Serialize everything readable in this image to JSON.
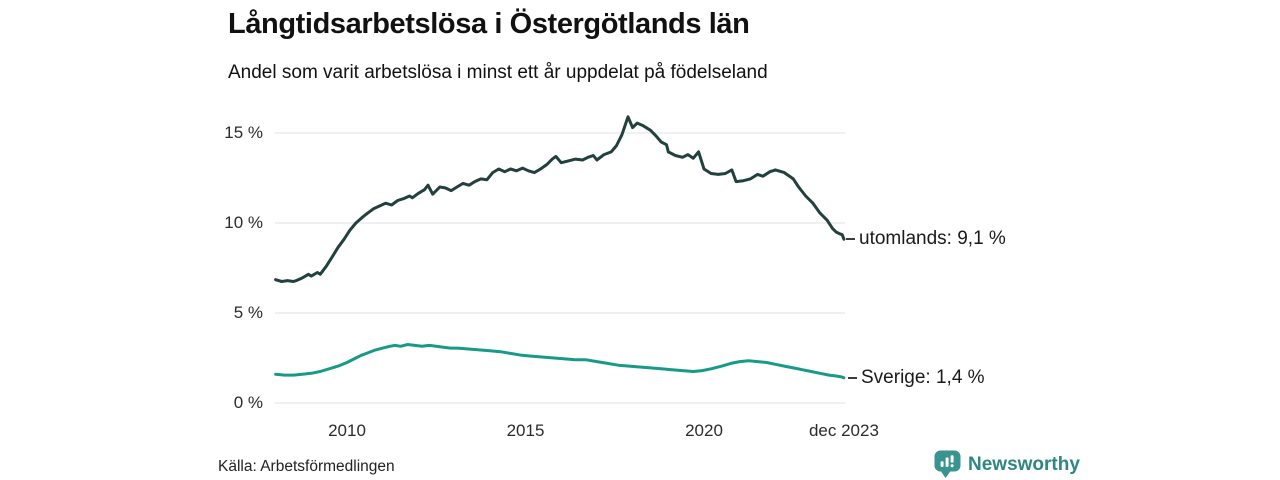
{
  "header": {
    "title": "Långtidsarbetslösa i Östergötlands län",
    "subtitle": "Andel som varit arbetslösa i minst ett år uppdelat på födelseland"
  },
  "footer": {
    "source": "Källa: Arbetsförmedlingen",
    "brand": "Newsworthy",
    "brand_color": "#2f8683",
    "logo_icon": "speech-bubble-bar-chart-icon"
  },
  "chart_data": {
    "type": "line",
    "title": "Långtidsarbetslösa i Östergötlands län",
    "subtitle": "Andel som varit arbetslösa i minst ett år uppdelat på födelseland",
    "unit": "%",
    "grid": "horizontal",
    "grid_color": "#e8e8ea",
    "x_range": [
      2008,
      2023.92
    ],
    "y_range": [
      0,
      16.5
    ],
    "x_ticks": [
      {
        "x": 2010,
        "label": "2010"
      },
      {
        "x": 2015,
        "label": "2015"
      },
      {
        "x": 2020,
        "label": "2020"
      },
      {
        "x": 2023.92,
        "label": "dec 2023"
      }
    ],
    "y_ticks": [
      {
        "v": 0,
        "label": "0 %"
      },
      {
        "v": 5,
        "label": "5 %"
      },
      {
        "v": 10,
        "label": "10 %"
      },
      {
        "v": 15,
        "label": "15 %"
      }
    ],
    "series": [
      {
        "name": "utomlands",
        "end_label": "utomlands: 9,1 %",
        "end_value": 9.1,
        "color": "#22403c",
        "points": [
          [
            2008.0,
            6.85
          ],
          [
            2008.17,
            6.75
          ],
          [
            2008.33,
            6.8
          ],
          [
            2008.5,
            6.75
          ],
          [
            2008.58,
            6.8
          ],
          [
            2008.75,
            6.95
          ],
          [
            2008.92,
            7.15
          ],
          [
            2009.0,
            7.05
          ],
          [
            2009.17,
            7.25
          ],
          [
            2009.25,
            7.15
          ],
          [
            2009.42,
            7.6
          ],
          [
            2009.58,
            8.1
          ],
          [
            2009.75,
            8.65
          ],
          [
            2009.92,
            9.1
          ],
          [
            2010.08,
            9.6
          ],
          [
            2010.25,
            10.0
          ],
          [
            2010.42,
            10.3
          ],
          [
            2010.58,
            10.55
          ],
          [
            2010.75,
            10.8
          ],
          [
            2010.92,
            10.95
          ],
          [
            2011.08,
            11.1
          ],
          [
            2011.25,
            11.0
          ],
          [
            2011.42,
            11.25
          ],
          [
            2011.58,
            11.35
          ],
          [
            2011.75,
            11.5
          ],
          [
            2011.83,
            11.4
          ],
          [
            2012.0,
            11.65
          ],
          [
            2012.17,
            11.85
          ],
          [
            2012.27,
            12.1
          ],
          [
            2012.4,
            11.6
          ],
          [
            2012.6,
            12.0
          ],
          [
            2012.75,
            11.95
          ],
          [
            2012.92,
            11.8
          ],
          [
            2013.08,
            12.0
          ],
          [
            2013.25,
            12.2
          ],
          [
            2013.42,
            12.1
          ],
          [
            2013.58,
            12.3
          ],
          [
            2013.75,
            12.45
          ],
          [
            2013.92,
            12.4
          ],
          [
            2014.08,
            12.8
          ],
          [
            2014.25,
            13.0
          ],
          [
            2014.42,
            12.85
          ],
          [
            2014.58,
            13.0
          ],
          [
            2014.75,
            12.9
          ],
          [
            2014.92,
            13.05
          ],
          [
            2015.08,
            12.9
          ],
          [
            2015.25,
            12.8
          ],
          [
            2015.42,
            13.0
          ],
          [
            2015.6,
            13.25
          ],
          [
            2015.75,
            13.55
          ],
          [
            2015.85,
            13.7
          ],
          [
            2016.0,
            13.35
          ],
          [
            2016.2,
            13.45
          ],
          [
            2016.4,
            13.55
          ],
          [
            2016.6,
            13.5
          ],
          [
            2016.75,
            13.65
          ],
          [
            2016.9,
            13.75
          ],
          [
            2017.0,
            13.5
          ],
          [
            2017.2,
            13.8
          ],
          [
            2017.4,
            13.95
          ],
          [
            2017.55,
            14.3
          ],
          [
            2017.7,
            14.9
          ],
          [
            2017.87,
            15.9
          ],
          [
            2018.0,
            15.3
          ],
          [
            2018.13,
            15.55
          ],
          [
            2018.3,
            15.4
          ],
          [
            2018.5,
            15.15
          ],
          [
            2018.65,
            14.85
          ],
          [
            2018.8,
            14.5
          ],
          [
            2018.95,
            14.35
          ],
          [
            2019.0,
            13.95
          ],
          [
            2019.2,
            13.75
          ],
          [
            2019.4,
            13.65
          ],
          [
            2019.55,
            13.8
          ],
          [
            2019.7,
            13.6
          ],
          [
            2019.85,
            13.95
          ],
          [
            2020.0,
            13.0
          ],
          [
            2020.2,
            12.75
          ],
          [
            2020.4,
            12.7
          ],
          [
            2020.6,
            12.75
          ],
          [
            2020.78,
            12.95
          ],
          [
            2020.9,
            12.3
          ],
          [
            2021.1,
            12.35
          ],
          [
            2021.3,
            12.45
          ],
          [
            2021.5,
            12.7
          ],
          [
            2021.65,
            12.6
          ],
          [
            2021.85,
            12.85
          ],
          [
            2022.0,
            12.95
          ],
          [
            2022.25,
            12.8
          ],
          [
            2022.5,
            12.45
          ],
          [
            2022.65,
            12.0
          ],
          [
            2022.85,
            11.5
          ],
          [
            2023.05,
            11.1
          ],
          [
            2023.25,
            10.55
          ],
          [
            2023.45,
            10.15
          ],
          [
            2023.6,
            9.7
          ],
          [
            2023.7,
            9.5
          ],
          [
            2023.8,
            9.4
          ],
          [
            2023.87,
            9.35
          ],
          [
            2023.92,
            9.1
          ]
        ]
      },
      {
        "name": "Sverige",
        "end_label": "Sverige: 1,4 %",
        "end_value": 1.4,
        "color": "#189a89",
        "points": [
          [
            2008.0,
            1.6
          ],
          [
            2008.25,
            1.55
          ],
          [
            2008.5,
            1.55
          ],
          [
            2008.75,
            1.6
          ],
          [
            2009.0,
            1.65
          ],
          [
            2009.25,
            1.75
          ],
          [
            2009.5,
            1.9
          ],
          [
            2009.75,
            2.05
          ],
          [
            2010.0,
            2.25
          ],
          [
            2010.2,
            2.45
          ],
          [
            2010.4,
            2.65
          ],
          [
            2010.6,
            2.8
          ],
          [
            2010.8,
            2.95
          ],
          [
            2011.0,
            3.05
          ],
          [
            2011.2,
            3.15
          ],
          [
            2011.35,
            3.2
          ],
          [
            2011.5,
            3.15
          ],
          [
            2011.7,
            3.25
          ],
          [
            2011.9,
            3.2
          ],
          [
            2012.1,
            3.15
          ],
          [
            2012.3,
            3.2
          ],
          [
            2012.5,
            3.15
          ],
          [
            2012.7,
            3.1
          ],
          [
            2012.9,
            3.05
          ],
          [
            2013.1,
            3.05
          ],
          [
            2013.4,
            3.0
          ],
          [
            2013.7,
            2.95
          ],
          [
            2014.0,
            2.9
          ],
          [
            2014.3,
            2.85
          ],
          [
            2014.6,
            2.75
          ],
          [
            2014.9,
            2.65
          ],
          [
            2015.2,
            2.6
          ],
          [
            2015.5,
            2.55
          ],
          [
            2015.8,
            2.5
          ],
          [
            2016.1,
            2.45
          ],
          [
            2016.4,
            2.4
          ],
          [
            2016.7,
            2.4
          ],
          [
            2017.0,
            2.3
          ],
          [
            2017.3,
            2.2
          ],
          [
            2017.6,
            2.1
          ],
          [
            2017.9,
            2.05
          ],
          [
            2018.2,
            2.0
          ],
          [
            2018.5,
            1.95
          ],
          [
            2018.8,
            1.9
          ],
          [
            2019.1,
            1.85
          ],
          [
            2019.4,
            1.8
          ],
          [
            2019.7,
            1.75
          ],
          [
            2019.95,
            1.8
          ],
          [
            2020.2,
            1.9
          ],
          [
            2020.5,
            2.05
          ],
          [
            2020.75,
            2.2
          ],
          [
            2021.0,
            2.3
          ],
          [
            2021.25,
            2.35
          ],
          [
            2021.5,
            2.3
          ],
          [
            2021.75,
            2.25
          ],
          [
            2022.0,
            2.15
          ],
          [
            2022.25,
            2.05
          ],
          [
            2022.5,
            1.95
          ],
          [
            2022.75,
            1.85
          ],
          [
            2023.0,
            1.75
          ],
          [
            2023.25,
            1.65
          ],
          [
            2023.5,
            1.55
          ],
          [
            2023.7,
            1.5
          ],
          [
            2023.85,
            1.45
          ],
          [
            2023.92,
            1.4
          ]
        ]
      }
    ]
  }
}
